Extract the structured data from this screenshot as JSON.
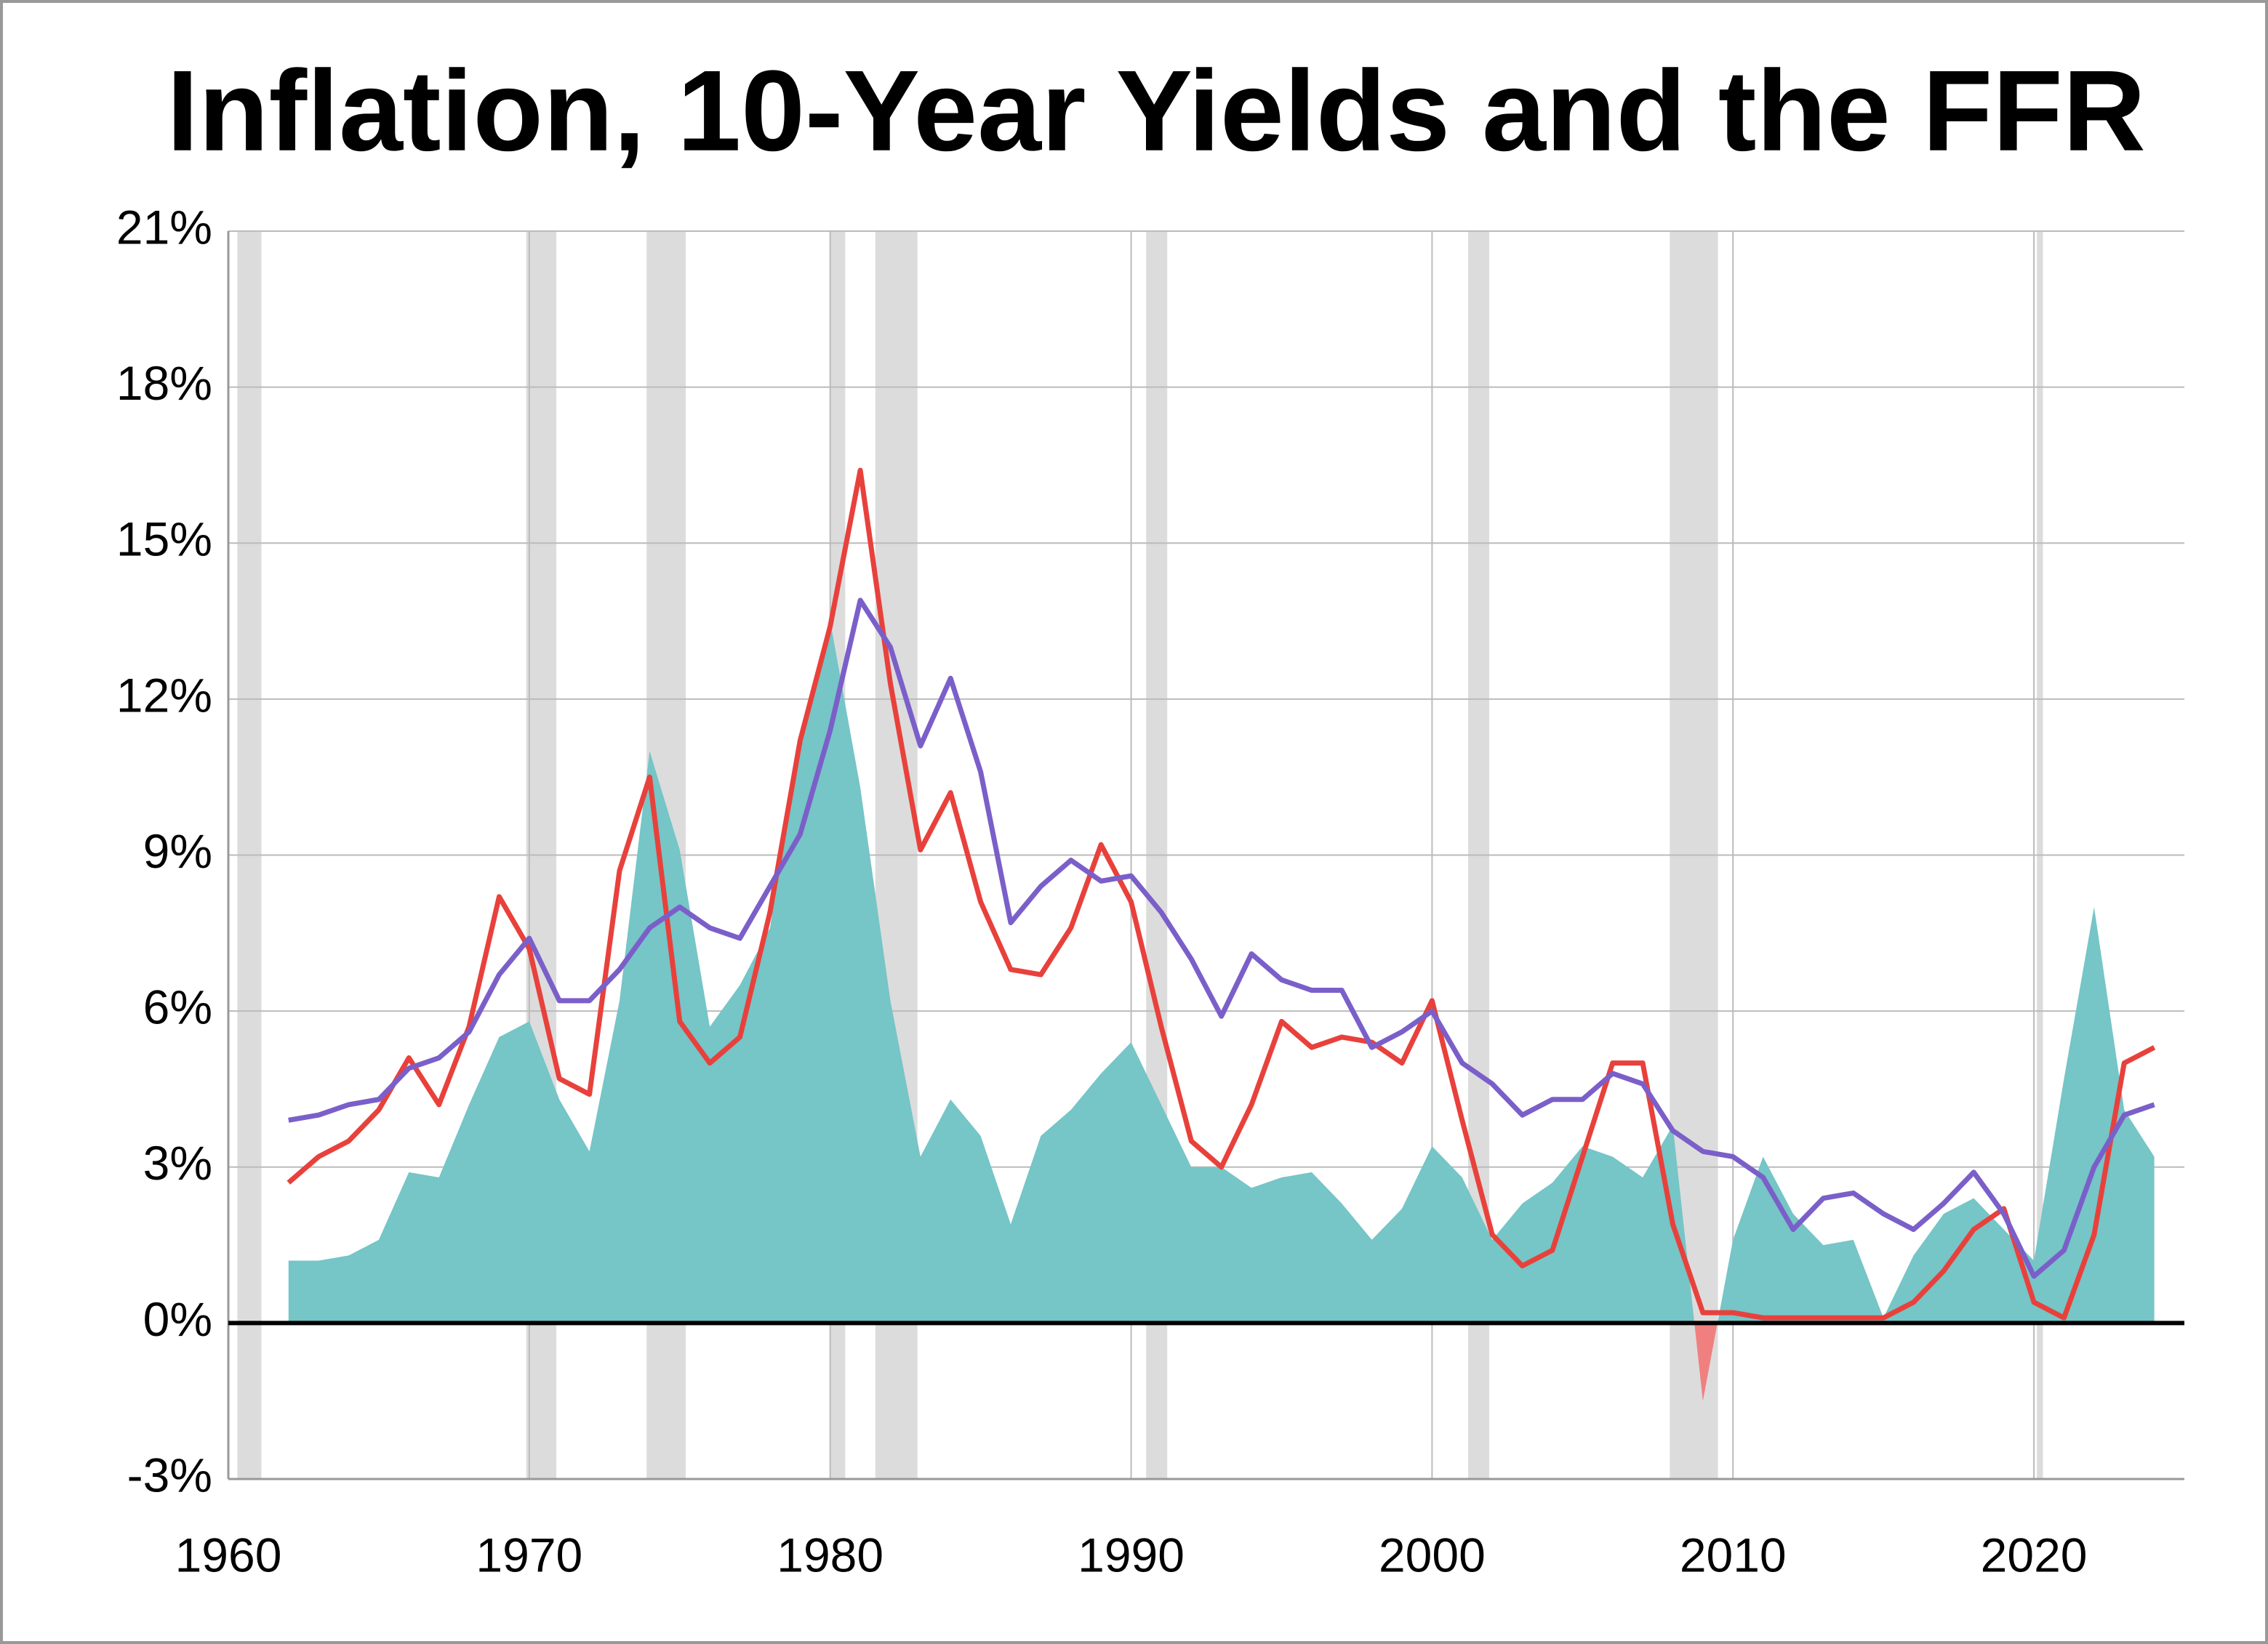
{
  "chart_data": {
    "type": "line",
    "title": "Inflation, 10-Year Yields and the FFR",
    "xlim": [
      1960,
      2025
    ],
    "xticks": [
      1960,
      1970,
      1980,
      1990,
      2000,
      2010,
      2020
    ],
    "ylim": [
      -3,
      21
    ],
    "yticks": [
      {
        "value": -3,
        "label": "-3%"
      },
      {
        "value": 0,
        "label": "0%"
      },
      {
        "value": 3,
        "label": "3%"
      },
      {
        "value": 6,
        "label": "6%"
      },
      {
        "value": 9,
        "label": "9%"
      },
      {
        "value": 12,
        "label": "12%"
      },
      {
        "value": 15,
        "label": "15%"
      },
      {
        "value": 18,
        "label": "18%"
      },
      {
        "value": 21,
        "label": "21%"
      }
    ],
    "grid": true,
    "recession_color": "#dcdcdc",
    "recessions": [
      [
        1960.3,
        1961.1
      ],
      [
        1969.9,
        1970.9
      ],
      [
        1973.9,
        1975.2
      ],
      [
        1980.0,
        1980.5
      ],
      [
        1981.5,
        1982.9
      ],
      [
        1990.5,
        1991.2
      ],
      [
        2001.2,
        2001.9
      ],
      [
        2007.9,
        2009.5
      ],
      [
        2020.1,
        2020.3
      ]
    ],
    "x": [
      1962,
      1963,
      1964,
      1965,
      1966,
      1967,
      1968,
      1969,
      1970,
      1971,
      1972,
      1973,
      1974,
      1975,
      1976,
      1977,
      1978,
      1979,
      1980,
      1981,
      1982,
      1983,
      1984,
      1985,
      1986,
      1987,
      1988,
      1989,
      1990,
      1991,
      1992,
      1993,
      1994,
      1995,
      1996,
      1997,
      1998,
      1999,
      2000,
      2001,
      2002,
      2003,
      2004,
      2005,
      2006,
      2007,
      2008,
      2009,
      2010,
      2011,
      2012,
      2013,
      2014,
      2015,
      2016,
      2017,
      2018,
      2019,
      2020,
      2021,
      2022,
      2023,
      2024
    ],
    "series": [
      {
        "kind": "area",
        "color": "#76c5c7",
        "negative_color": "#f08080",
        "values": [
          1.2,
          1.2,
          1.3,
          1.6,
          2.9,
          2.8,
          4.2,
          5.5,
          5.8,
          4.3,
          3.3,
          6.2,
          11.0,
          9.1,
          5.7,
          6.5,
          7.6,
          11.3,
          13.5,
          10.3,
          6.2,
          3.2,
          4.3,
          3.6,
          1.9,
          3.6,
          4.1,
          4.8,
          5.4,
          4.2,
          3.0,
          3.0,
          2.6,
          2.8,
          2.9,
          2.3,
          1.6,
          2.2,
          3.4,
          2.8,
          1.6,
          2.3,
          2.7,
          3.4,
          3.2,
          2.8,
          3.8,
          -1.5,
          1.6,
          3.2,
          2.1,
          1.5,
          1.6,
          0.1,
          1.3,
          2.1,
          2.4,
          1.8,
          1.2,
          4.7,
          8.0,
          4.1,
          3.2
        ]
      },
      {
        "kind": "line",
        "color": "#e8413c",
        "values": [
          2.7,
          3.2,
          3.5,
          4.1,
          5.1,
          4.2,
          5.7,
          8.2,
          7.2,
          4.7,
          4.4,
          8.7,
          10.5,
          5.8,
          5.0,
          5.5,
          7.9,
          11.2,
          13.4,
          16.4,
          12.3,
          9.1,
          10.2,
          8.1,
          6.8,
          6.7,
          7.6,
          9.2,
          8.1,
          5.7,
          3.5,
          3.0,
          4.2,
          5.8,
          5.3,
          5.5,
          5.4,
          5.0,
          6.2,
          3.9,
          1.7,
          1.1,
          1.4,
          3.2,
          5.0,
          5.0,
          1.9,
          0.2,
          0.2,
          0.1,
          0.1,
          0.1,
          0.1,
          0.1,
          0.4,
          1.0,
          1.8,
          2.2,
          0.4,
          0.1,
          1.7,
          5.0,
          5.3
        ]
      },
      {
        "kind": "line",
        "color": "#7b5fc9",
        "values": [
          3.9,
          4.0,
          4.2,
          4.3,
          4.9,
          5.1,
          5.6,
          6.7,
          7.4,
          6.2,
          6.2,
          6.8,
          7.6,
          8.0,
          7.6,
          7.4,
          8.4,
          9.4,
          11.4,
          13.9,
          13.0,
          11.1,
          12.4,
          10.6,
          7.7,
          8.4,
          8.9,
          8.5,
          8.6,
          7.9,
          7.0,
          5.9,
          7.1,
          6.6,
          6.4,
          6.4,
          5.3,
          5.6,
          6.0,
          5.0,
          4.6,
          4.0,
          4.3,
          4.3,
          4.8,
          4.6,
          3.7,
          3.3,
          3.2,
          2.8,
          1.8,
          2.4,
          2.5,
          2.1,
          1.8,
          2.3,
          2.9,
          2.1,
          0.9,
          1.4,
          3.0,
          4.0,
          4.2
        ]
      }
    ]
  }
}
